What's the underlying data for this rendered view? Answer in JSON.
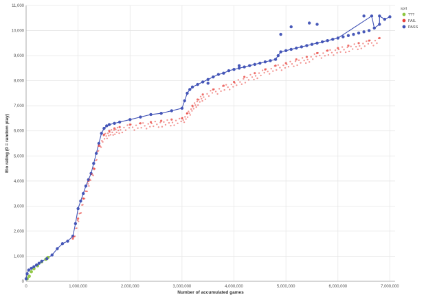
{
  "chart_data": {
    "type": "scatter",
    "title": "",
    "xlabel": "Number of accumulated games",
    "ylabel": "Elo rating (0 = random play)",
    "xlim": [
      0,
      7100000
    ],
    "ylim": [
      0,
      11000
    ],
    "xticks": [
      0,
      1000000,
      2000000,
      3000000,
      4000000,
      5000000,
      6000000,
      7000000
    ],
    "xtick_labels": [
      "0",
      "1,000,000",
      "2,000,000",
      "3,000,000",
      "4,000,000",
      "5,000,000",
      "6,000,000",
      "7,000,000"
    ],
    "yticks": [
      0,
      1000,
      2000,
      3000,
      4000,
      5000,
      6000,
      7000,
      8000,
      9000,
      10000,
      11000
    ],
    "ytick_labels": [
      "0",
      "1,000",
      "2,000",
      "3,000",
      "4,000",
      "5,000",
      "6,000",
      "7,000",
      "8,000",
      "9,000",
      "10,000",
      "11,000"
    ],
    "grid": true,
    "legend": {
      "title": "sprt",
      "position": "right-top"
    },
    "series": [
      {
        "name": "???",
        "color": "#8dc63f",
        "x": [
          20000,
          60000,
          100000,
          150000,
          220000,
          300000,
          380000,
          420000
        ],
        "y": [
          100,
          200,
          380,
          500,
          620,
          780,
          880,
          950
        ]
      },
      {
        "name": "FAIL",
        "color": "#e8403a",
        "x": [
          900000,
          1000000,
          1100000,
          1200000,
          1300000,
          1400000,
          1500000,
          1600000,
          1700000,
          1800000,
          2000000,
          2200000,
          2400000,
          2600000,
          2800000,
          3000000,
          3100000,
          3200000,
          3300000,
          3400000,
          3600000,
          3800000,
          4000000,
          4200000,
          4400000,
          4600000,
          4800000,
          5000000,
          5200000,
          5400000,
          5600000,
          5800000,
          6000000,
          6200000,
          6400000,
          6600000,
          6800000
        ],
        "y": [
          1700,
          2500,
          3300,
          4000,
          4500,
          5400,
          5850,
          6000,
          6100,
          6150,
          6250,
          6300,
          6350,
          6400,
          6450,
          6500,
          6700,
          7000,
          7250,
          7450,
          7650,
          7800,
          7950,
          8150,
          8300,
          8450,
          8600,
          8700,
          8850,
          8950,
          9100,
          9200,
          9300,
          9400,
          9500,
          9600,
          9700
        ]
      },
      {
        "name": "PASS",
        "color": "#3f51b5",
        "x": [
          0,
          20000,
          50000,
          100000,
          150000,
          200000,
          250000,
          300000,
          400000,
          500000,
          600000,
          700000,
          800000,
          900000,
          950000,
          1000000,
          1050000,
          1100000,
          1150000,
          1200000,
          1250000,
          1300000,
          1350000,
          1400000,
          1450000,
          1500000,
          1550000,
          1600000,
          1700000,
          1800000,
          2000000,
          2200000,
          2400000,
          2600000,
          2800000,
          3000000,
          3050000,
          3100000,
          3150000,
          3200000,
          3300000,
          3400000,
          3500000,
          3600000,
          3700000,
          3800000,
          3900000,
          4000000,
          4100000,
          4200000,
          4300000,
          4400000,
          4500000,
          4600000,
          4700000,
          4800000,
          4850000,
          4900000,
          5000000,
          5100000,
          5200000,
          5300000,
          5400000,
          5500000,
          5600000,
          5700000,
          5800000,
          5900000,
          6000000,
          6100000,
          6200000,
          6300000,
          6400000,
          6500000,
          6600000,
          6700000,
          6800000,
          6900000,
          7000000,
          4900000,
          5100000,
          5450000,
          5600000,
          6500000,
          6650000,
          6800000,
          3500000,
          4100000
        ],
        "y": [
          100,
          300,
          450,
          520,
          580,
          650,
          720,
          800,
          900,
          1050,
          1300,
          1500,
          1600,
          1800,
          2300,
          2900,
          3200,
          3500,
          3800,
          4050,
          4300,
          4700,
          5100,
          5500,
          5900,
          6100,
          6200,
          6250,
          6300,
          6350,
          6450,
          6550,
          6650,
          6700,
          6800,
          6900,
          7200,
          7500,
          7650,
          7750,
          7850,
          7950,
          8050,
          8150,
          8250,
          8300,
          8400,
          8450,
          8500,
          8550,
          8600,
          8650,
          8700,
          8750,
          8800,
          8850,
          9000,
          9150,
          9200,
          9250,
          9300,
          9350,
          9400,
          9450,
          9500,
          9550,
          9600,
          9650,
          9700,
          9750,
          9800,
          9850,
          9900,
          9950,
          10000,
          10100,
          10250,
          10450,
          10550,
          9850,
          10150,
          10300,
          10250,
          10580,
          10580,
          10580,
          7900,
          8600
        ]
      }
    ]
  }
}
